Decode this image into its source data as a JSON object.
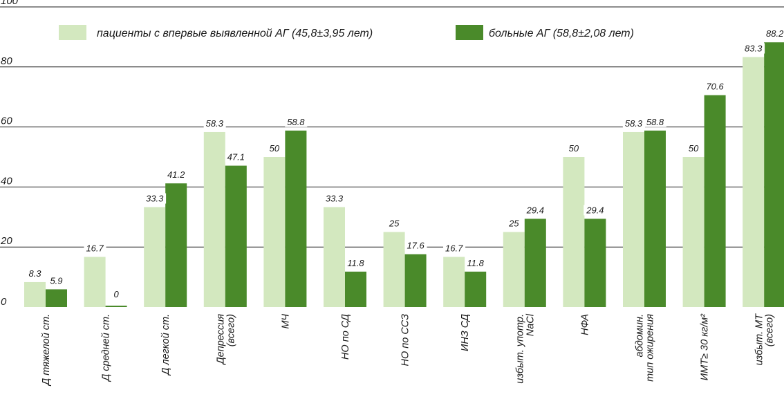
{
  "chart_data": {
    "type": "bar",
    "title": "",
    "xlabel": "",
    "ylabel": "",
    "ylim": [
      0,
      100
    ],
    "yticks": [
      0,
      20,
      40,
      60,
      80,
      100
    ],
    "grid": true,
    "legend_position": "top",
    "categories": [
      [
        "Д тяжелой ст."
      ],
      [
        "Д средней ст."
      ],
      [
        "Д легкой ст."
      ],
      [
        "Депрессия",
        "(всего)"
      ],
      [
        "МЧ"
      ],
      [
        "НО по СД"
      ],
      [
        "НО по ССЗ"
      ],
      [
        "ИНЗ СД"
      ],
      [
        "избыт. употр.",
        "NaCl"
      ],
      [
        "НФА"
      ],
      [
        "абдомин.",
        "тип ожирения"
      ],
      [
        "ИМТ≥ 30 кг/м²"
      ],
      [
        "избыт. МТ",
        "(всего)"
      ]
    ],
    "series": [
      {
        "name": "пациенты с впервые выявленной АГ (45,8±3,95 лет)",
        "color": "#d3e8bf",
        "values": [
          8.3,
          16.7,
          33.3,
          58.3,
          50,
          33.3,
          25,
          16.7,
          25,
          50,
          58.3,
          50,
          83.3
        ]
      },
      {
        "name": "больные АГ (58,8±2,08 лет)",
        "color": "#4a8a2a",
        "values": [
          5.9,
          0,
          41.2,
          47.1,
          58.8,
          11.8,
          17.6,
          11.8,
          29.4,
          29.4,
          58.8,
          70.6,
          88.2
        ]
      }
    ]
  }
}
